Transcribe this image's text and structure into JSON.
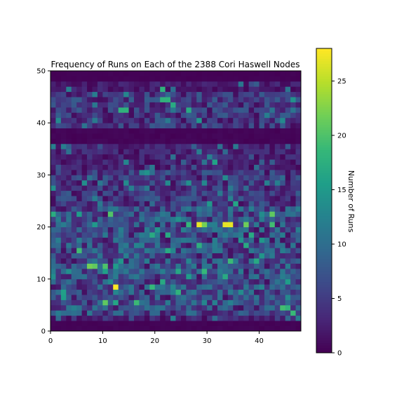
{
  "chart_data": {
    "type": "heatmap",
    "title": "Frequency of Runs on Each of the 2388 Cori Haswell Nodes",
    "xlabel": "",
    "ylabel": "",
    "xlim": [
      0,
      48
    ],
    "ylim": [
      0,
      50
    ],
    "x_ticks": [
      0,
      10,
      20,
      30,
      40
    ],
    "y_ticks": [
      0,
      10,
      20,
      30,
      40,
      50
    ],
    "grid_cols": 48,
    "grid_rows": 50,
    "colormap": "viridis",
    "colorbar": {
      "label": "Number of Runs",
      "range": [
        0,
        28
      ],
      "ticks": [
        0,
        5,
        10,
        15,
        20,
        25
      ]
    },
    "colors": {
      "viridis": [
        "#440154",
        "#482878",
        "#3e4989",
        "#31688e",
        "#26828e",
        "#1f9e89",
        "#35b779",
        "#6ece58",
        "#b5de2b",
        "#fde725"
      ]
    },
    "bands": [
      {
        "rows": [
          0,
          1
        ],
        "level": 0.4
      },
      {
        "rows": [
          2,
          2
        ],
        "level": 3
      },
      {
        "rows": [
          3,
          9
        ],
        "level": 6
      },
      {
        "rows": [
          10,
          23
        ],
        "level": 6.5
      },
      {
        "rows": [
          24,
          30
        ],
        "level": 4.5
      },
      {
        "rows": [
          31,
          35
        ],
        "level": 2.5
      },
      {
        "rows": [
          36,
          38
        ],
        "level": 0.6
      },
      {
        "rows": [
          39,
          45
        ],
        "level": 4.5
      },
      {
        "rows": [
          46,
          47
        ],
        "level": 2
      },
      {
        "rows": [
          48,
          49
        ],
        "level": 0.3
      }
    ],
    "highlights": [
      {
        "col": 12,
        "row": 8,
        "value": 28
      },
      {
        "col": 28,
        "row": 20,
        "value": 27
      },
      {
        "col": 29,
        "row": 20,
        "value": 22
      },
      {
        "col": 33,
        "row": 20,
        "value": 27
      },
      {
        "col": 34,
        "row": 20,
        "value": 27
      },
      {
        "col": 42,
        "row": 22,
        "value": 21
      },
      {
        "col": 7,
        "row": 12,
        "value": 22
      },
      {
        "col": 8,
        "row": 12,
        "value": 21
      },
      {
        "col": 10,
        "row": 12,
        "value": 20
      },
      {
        "col": 10,
        "row": 5,
        "value": 21
      },
      {
        "col": 16,
        "row": 5,
        "value": 19
      },
      {
        "col": 21,
        "row": 44,
        "value": 18
      },
      {
        "col": 22,
        "row": 44,
        "value": 18
      },
      {
        "col": 23,
        "row": 43,
        "value": 17
      },
      {
        "col": 13,
        "row": 42,
        "value": 18
      },
      {
        "col": 14,
        "row": 42,
        "value": 18
      },
      {
        "col": 26,
        "row": 42,
        "value": 17
      },
      {
        "col": 21,
        "row": 46,
        "value": 18
      },
      {
        "col": 34,
        "row": 13,
        "value": 19
      },
      {
        "col": 33,
        "row": 10,
        "value": 17
      },
      {
        "col": 38,
        "row": 18,
        "value": 17
      },
      {
        "col": 31,
        "row": 32,
        "value": 16
      },
      {
        "col": 22,
        "row": 15,
        "value": 17
      },
      {
        "col": 19,
        "row": 18,
        "value": 17
      }
    ]
  }
}
